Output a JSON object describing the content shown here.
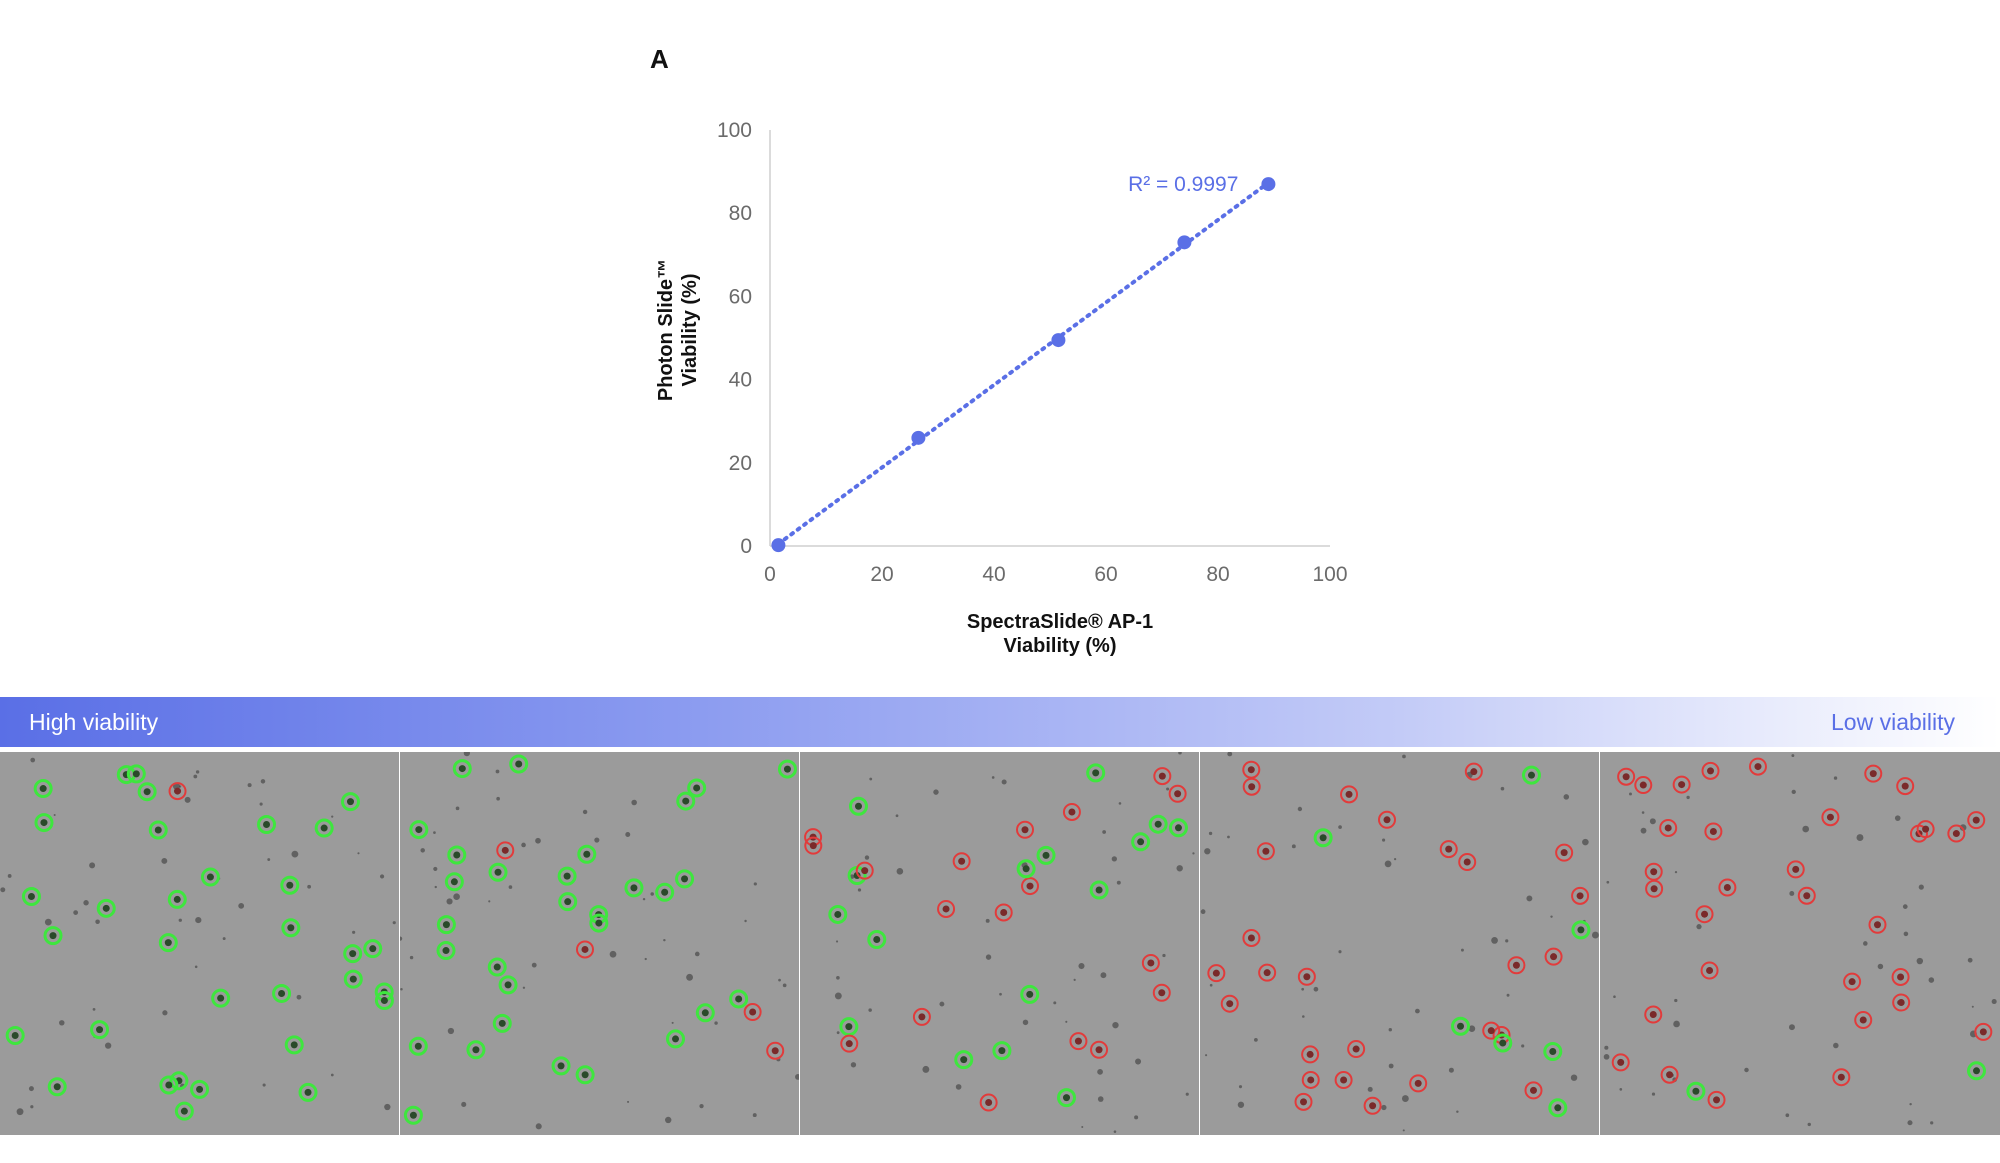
{
  "panel_label": "A",
  "chart_data": {
    "type": "scatter",
    "title": "",
    "xlabel_lines": [
      "SpectraSlide® AP-1",
      "Viability (%)"
    ],
    "ylabel_lines": [
      "Photon Slide™",
      "Viability (%)"
    ],
    "xlim": [
      0,
      100
    ],
    "ylim": [
      0,
      100
    ],
    "x_ticks": [
      0,
      20,
      40,
      60,
      80,
      100
    ],
    "y_ticks": [
      0,
      20,
      40,
      60,
      80,
      100
    ],
    "x": [
      1.5,
      26.5,
      51.5,
      74,
      89
    ],
    "y": [
      0.2,
      26,
      49.5,
      73,
      87
    ],
    "trendline": {
      "style": "dotted",
      "label": "R² = 0.9997"
    },
    "grid": false,
    "color": "#5a6fe6"
  },
  "viability_bar": {
    "left_label": "High viability",
    "right_label": "Low viability",
    "start_color": "#5a6fe6",
    "end_color": "#ffffff"
  },
  "micrographs": [
    {
      "live_ratio": 0.95
    },
    {
      "live_ratio": 0.85
    },
    {
      "live_ratio": 0.5
    },
    {
      "live_ratio": 0.15
    },
    {
      "live_ratio": 0.02
    }
  ],
  "colors": {
    "live": "#3ee63e",
    "dead": "#e23b3b",
    "background": "#9b9b9b"
  }
}
